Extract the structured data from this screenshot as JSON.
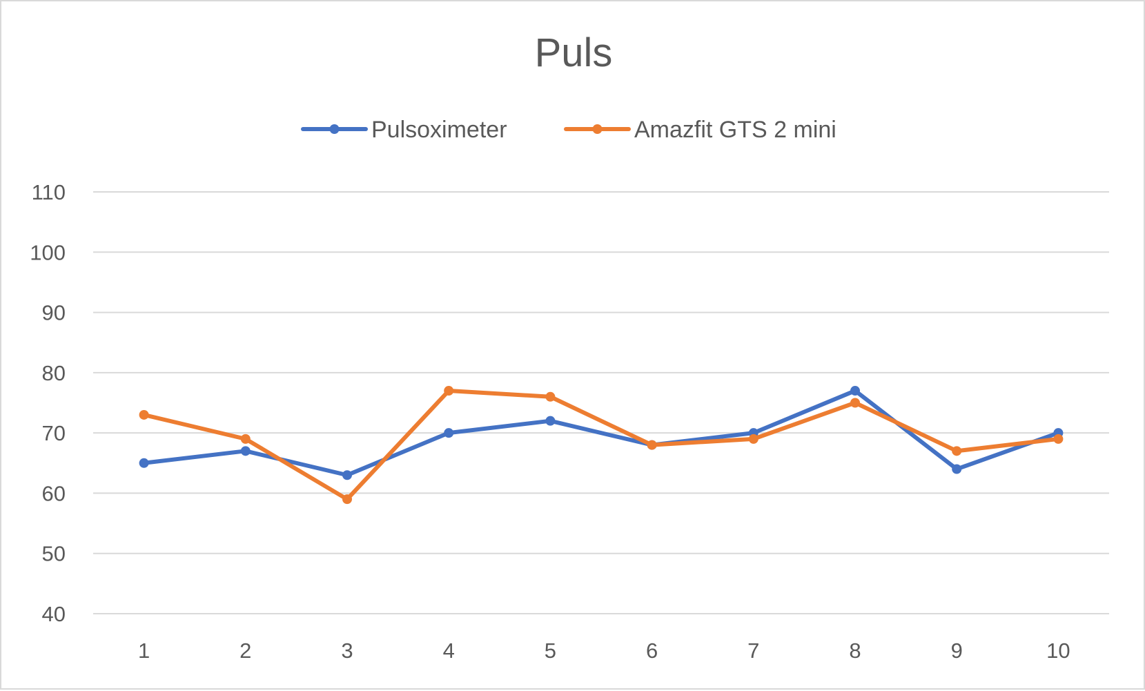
{
  "chart_data": {
    "type": "line",
    "title": "Puls",
    "xlabel": "",
    "ylabel": "",
    "categories": [
      "1",
      "2",
      "3",
      "4",
      "5",
      "6",
      "7",
      "8",
      "9",
      "10"
    ],
    "yticks": [
      "40",
      "50",
      "60",
      "70",
      "80",
      "90",
      "100",
      "110"
    ],
    "ylim": [
      40,
      110
    ],
    "grid": "horizontal",
    "legend_position": "top",
    "series": [
      {
        "name": "Pulsoximeter",
        "color": "#4472C4",
        "values": [
          65,
          67,
          63,
          70,
          72,
          68,
          70,
          77,
          64,
          70
        ]
      },
      {
        "name": "Amazfit GTS 2 mini",
        "color": "#ED7D31",
        "values": [
          73,
          69,
          59,
          77,
          76,
          68,
          69,
          75,
          67,
          69
        ]
      }
    ]
  }
}
